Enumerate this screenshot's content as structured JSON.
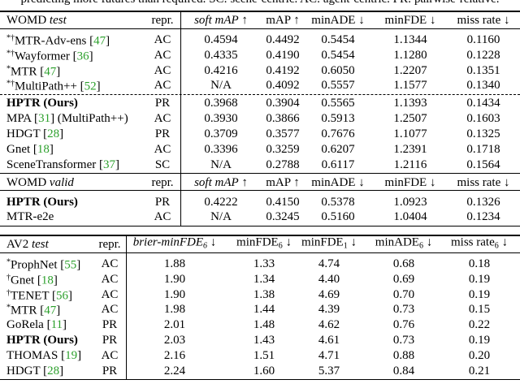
{
  "caption": "predicting more futures than required. SC: scene-centric. AC: agent-centric. PR: pairwise-relative.",
  "tables": [
    {
      "blocks": [
        {
          "header": [
            [
              {
                "t": "WOMD "
              },
              {
                "t": "test",
                "s": "i"
              }
            ],
            "repr.",
            [
              {
                "t": "soft mAP",
                "s": "i"
              },
              {
                "t": " ↑"
              }
            ],
            "mAP ↑",
            "minADE ↓",
            "minFDE ↓",
            "miss rate ↓"
          ],
          "groups": [
            [
              [
                [
                  {
                    "t": "*†",
                    "s": "sup"
                  },
                  {
                    "t": "MTR-Adv-ens ["
                  },
                  {
                    "t": "47",
                    "s": "ref"
                  },
                  {
                    "t": "]"
                  }
                ],
                "AC",
                "0.4594",
                "0.4492",
                "0.5454",
                "1.1344",
                "0.1160"
              ],
              [
                [
                  {
                    "t": "*†",
                    "s": "sup"
                  },
                  {
                    "t": "Wayformer ["
                  },
                  {
                    "t": "36",
                    "s": "ref"
                  },
                  {
                    "t": "]"
                  }
                ],
                "AC",
                "0.4335",
                "0.4190",
                "0.5454",
                "1.1280",
                "0.1228"
              ],
              [
                [
                  {
                    "t": "*",
                    "s": "sup"
                  },
                  {
                    "t": "MTR ["
                  },
                  {
                    "t": "47",
                    "s": "ref"
                  },
                  {
                    "t": "]"
                  }
                ],
                "AC",
                "0.4216",
                "0.4192",
                "0.6050",
                "1.2207",
                "0.1351"
              ],
              [
                [
                  {
                    "t": "*†",
                    "s": "sup"
                  },
                  {
                    "t": "MultiPath++ ["
                  },
                  {
                    "t": "52",
                    "s": "ref"
                  },
                  {
                    "t": "]"
                  }
                ],
                "AC",
                "N/A",
                "0.4092",
                "0.5557",
                "1.1577",
                "0.1340"
              ]
            ],
            [
              [
                [
                  {
                    "t": "HPTR (Ours)",
                    "s": "b"
                  }
                ],
                "PR",
                "0.3968",
                "0.3904",
                "0.5565",
                "1.1393",
                "0.1434"
              ],
              [
                [
                  {
                    "t": "MPA ["
                  },
                  {
                    "t": "31",
                    "s": "ref"
                  },
                  {
                    "t": "] (MultiPath++)"
                  }
                ],
                "AC",
                "0.3930",
                "0.3866",
                "0.5913",
                "1.2507",
                "0.1603"
              ],
              [
                [
                  {
                    "t": "HDGT ["
                  },
                  {
                    "t": "28",
                    "s": "ref"
                  },
                  {
                    "t": "]"
                  }
                ],
                "PR",
                "0.3709",
                "0.3577",
                "0.7676",
                "1.1077",
                "0.1325"
              ],
              [
                [
                  {
                    "t": "Gnet ["
                  },
                  {
                    "t": "18",
                    "s": "ref"
                  },
                  {
                    "t": "]"
                  }
                ],
                "AC",
                "0.3396",
                "0.3259",
                "0.6207",
                "1.2391",
                "0.1718"
              ],
              [
                [
                  {
                    "t": "SceneTransformer ["
                  },
                  {
                    "t": "37",
                    "s": "ref"
                  },
                  {
                    "t": "]"
                  }
                ],
                "SC",
                "N/A",
                "0.2788",
                "0.6117",
                "1.2116",
                "0.1564"
              ]
            ]
          ]
        },
        {
          "header": [
            [
              {
                "t": "WOMD "
              },
              {
                "t": "valid",
                "s": "i"
              }
            ],
            "repr.",
            [
              {
                "t": "soft mAP",
                "s": "i"
              },
              {
                "t": " ↑"
              }
            ],
            "mAP ↑",
            "minADE ↓",
            "minFDE ↓",
            "miss rate ↓"
          ],
          "groups": [
            [
              [
                [
                  {
                    "t": "HPTR (Ours)",
                    "s": "b"
                  }
                ],
                "PR",
                "0.4222",
                "0.4150",
                "0.5378",
                "1.0923",
                "0.1326"
              ],
              [
                "MTR-e2e",
                "AC",
                "N/A",
                "0.3245",
                "0.5160",
                "1.0404",
                "0.1234"
              ]
            ]
          ]
        }
      ]
    },
    {
      "blocks": [
        {
          "header": [
            [
              {
                "t": "AV2 "
              },
              {
                "t": "test",
                "s": "i"
              }
            ],
            "repr.",
            [
              {
                "t": "brier-minFDE",
                "s": "i"
              },
              {
                "t": "6",
                "s": "i sub"
              },
              {
                "t": " ↓"
              }
            ],
            [
              {
                "t": "minFDE"
              },
              {
                "t": "6",
                "s": "sub"
              },
              {
                "t": " ↓"
              }
            ],
            [
              {
                "t": "minFDE"
              },
              {
                "t": "1",
                "s": "sub"
              },
              {
                "t": " ↓"
              }
            ],
            [
              {
                "t": "minADE"
              },
              {
                "t": "6",
                "s": "sub"
              },
              {
                "t": " ↓"
              }
            ],
            [
              {
                "t": "miss rate"
              },
              {
                "t": "6",
                "s": "sub"
              },
              {
                "t": " ↓"
              }
            ]
          ],
          "groups": [
            [
              [
                [
                  {
                    "t": "*",
                    "s": "sup"
                  },
                  {
                    "t": "ProphNet ["
                  },
                  {
                    "t": "55",
                    "s": "ref"
                  },
                  {
                    "t": "]"
                  }
                ],
                "AC",
                "1.88",
                "1.33",
                "4.74",
                "0.68",
                "0.18"
              ],
              [
                [
                  {
                    "t": "†",
                    "s": "sup"
                  },
                  {
                    "t": "Gnet ["
                  },
                  {
                    "t": "18",
                    "s": "ref"
                  },
                  {
                    "t": "]"
                  }
                ],
                "AC",
                "1.90",
                "1.34",
                "4.40",
                "0.69",
                "0.19"
              ],
              [
                [
                  {
                    "t": "†",
                    "s": "sup"
                  },
                  {
                    "t": "TENET ["
                  },
                  {
                    "t": "56",
                    "s": "ref"
                  },
                  {
                    "t": "]"
                  }
                ],
                "AC",
                "1.90",
                "1.38",
                "4.69",
                "0.70",
                "0.19"
              ],
              [
                [
                  {
                    "t": "*",
                    "s": "sup"
                  },
                  {
                    "t": "MTR ["
                  },
                  {
                    "t": "47",
                    "s": "ref"
                  },
                  {
                    "t": "]"
                  }
                ],
                "AC",
                "1.98",
                "1.44",
                "4.39",
                "0.73",
                "0.15"
              ],
              [
                [
                  {
                    "t": "GoRela ["
                  },
                  {
                    "t": "11",
                    "s": "ref"
                  },
                  {
                    "t": "]"
                  }
                ],
                "PR",
                "2.01",
                "1.48",
                "4.62",
                "0.76",
                "0.22"
              ],
              [
                [
                  {
                    "t": "HPTR (Ours)",
                    "s": "b"
                  }
                ],
                "PR",
                "2.03",
                "1.43",
                "4.61",
                "0.73",
                "0.19"
              ],
              [
                [
                  {
                    "t": "THOMAS ["
                  },
                  {
                    "t": "19",
                    "s": "ref"
                  },
                  {
                    "t": "]"
                  }
                ],
                "AC",
                "2.16",
                "1.51",
                "4.71",
                "0.88",
                "0.20"
              ],
              [
                [
                  {
                    "t": "HDGT ["
                  },
                  {
                    "t": "28",
                    "s": "ref"
                  },
                  {
                    "t": "]"
                  }
                ],
                "PR",
                "2.24",
                "1.60",
                "5.37",
                "0.84",
                "0.21"
              ]
            ]
          ]
        }
      ]
    }
  ]
}
